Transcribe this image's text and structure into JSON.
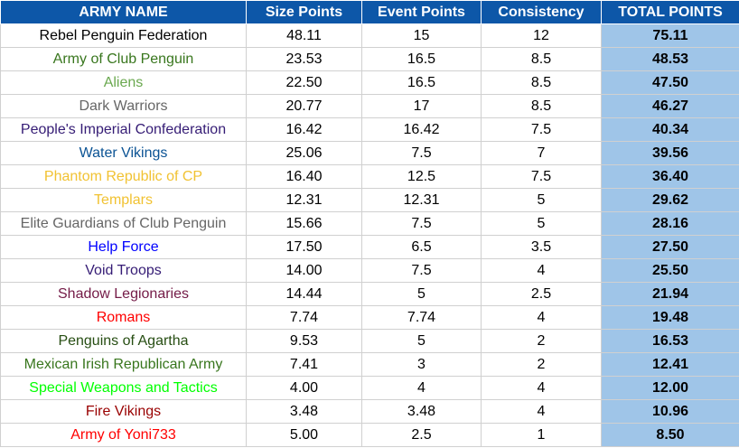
{
  "table": {
    "header": [
      "ARMY NAME",
      "Size Points",
      "Event Points",
      "Consistency",
      "TOTAL POINTS"
    ],
    "rows": [
      {
        "name": "Rebel Penguin Federation",
        "color": "#000000",
        "size": "48.11",
        "event": "15",
        "consistency": "12",
        "total": "75.11"
      },
      {
        "name": "Army of Club Penguin",
        "color": "#38761d",
        "size": "23.53",
        "event": "16.5",
        "consistency": "8.5",
        "total": "48.53"
      },
      {
        "name": "Aliens",
        "color": "#6aa84f",
        "size": "22.50",
        "event": "16.5",
        "consistency": "8.5",
        "total": "47.50"
      },
      {
        "name": "Dark Warriors",
        "color": "#666666",
        "size": "20.77",
        "event": "17",
        "consistency": "8.5",
        "total": "46.27"
      },
      {
        "name": "People's Imperial Confederation",
        "color": "#351c75",
        "size": "16.42",
        "event": "16.42",
        "consistency": "7.5",
        "total": "40.34"
      },
      {
        "name": "Water Vikings",
        "color": "#0b5394",
        "size": "25.06",
        "event": "7.5",
        "consistency": "7",
        "total": "39.56"
      },
      {
        "name": "Phantom Republic of CP",
        "color": "#f1c232",
        "size": "16.40",
        "event": "12.5",
        "consistency": "7.5",
        "total": "36.40"
      },
      {
        "name": "Templars",
        "color": "#f1c232",
        "size": "12.31",
        "event": "12.31",
        "consistency": "5",
        "total": "29.62"
      },
      {
        "name": "Elite Guardians of Club Penguin",
        "color": "#666666",
        "size": "15.66",
        "event": "7.5",
        "consistency": "5",
        "total": "28.16"
      },
      {
        "name": "Help Force",
        "color": "#0000ff",
        "size": "17.50",
        "event": "6.5",
        "consistency": "3.5",
        "total": "27.50"
      },
      {
        "name": "Void Troops",
        "color": "#351c75",
        "size": "14.00",
        "event": "7.5",
        "consistency": "4",
        "total": "25.50"
      },
      {
        "name": "Shadow Legionaries",
        "color": "#741b47",
        "size": "14.44",
        "event": "5",
        "consistency": "2.5",
        "total": "21.94"
      },
      {
        "name": "Romans",
        "color": "#ff0000",
        "size": "7.74",
        "event": "7.74",
        "consistency": "4",
        "total": "19.48"
      },
      {
        "name": "Penguins of Agartha",
        "color": "#274e13",
        "size": "9.53",
        "event": "5",
        "consistency": "2",
        "total": "16.53"
      },
      {
        "name": "Mexican Irish Republican Army",
        "color": "#38761d",
        "size": "7.41",
        "event": "3",
        "consistency": "2",
        "total": "12.41"
      },
      {
        "name": "Special Weapons and Tactics",
        "color": "#00ff00",
        "size": "4.00",
        "event": "4",
        "consistency": "4",
        "total": "12.00"
      },
      {
        "name": "Fire Vikings",
        "color": "#990000",
        "size": "3.48",
        "event": "3.48",
        "consistency": "4",
        "total": "10.96"
      },
      {
        "name": "Army of Yoni733",
        "color": "#ff0000",
        "size": "5.00",
        "event": "2.5",
        "consistency": "1",
        "total": "8.50"
      }
    ]
  }
}
